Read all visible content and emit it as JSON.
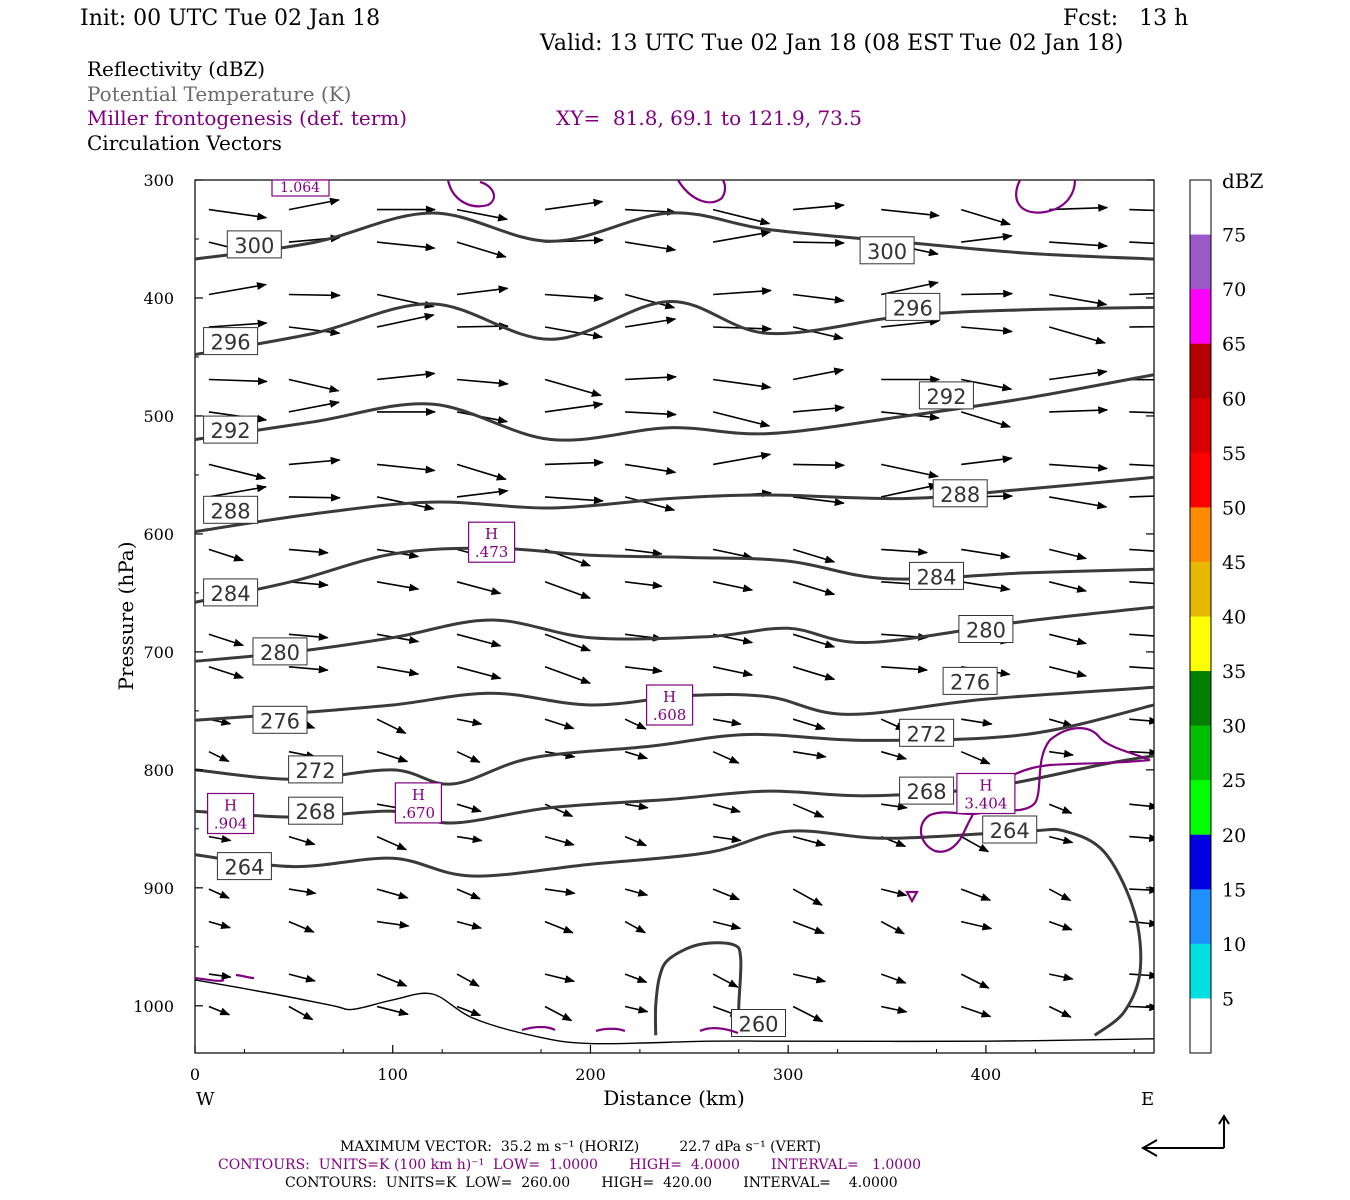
{
  "header": {
    "init": "Init: 00 UTC Tue 02 Jan 18",
    "fcst": "Fcst:   13 h",
    "valid": "Valid: 13 UTC Tue 02 Jan 18 (08 EST Tue 02 Jan 18)"
  },
  "legend_lines": {
    "reflectivity": "Reflectivity (dBZ)",
    "theta": "Potential Temperature (K)",
    "frontogenesis": "Miller frontogenesis (def. term)",
    "xy": "XY=  81.8, 69.1 to 121.9, 73.5",
    "circulation": "Circulation Vectors"
  },
  "footer": {
    "max_vector": "MAXIMUM VECTOR:  35.2 m s⁻¹ (HORIZ)         22.7 dPa s⁻¹ (VERT)",
    "contours_purple": "CONTOURS:  UNITS=K (100 km h)⁻¹  LOW=  1.0000       HIGH=  4.0000       INTERVAL=   1.0000",
    "contours_black": "CONTOURS:  UNITS=K  LOW=  260.00       HIGH=  420.00       INTERVAL=    4.0000"
  },
  "colors": {
    "theta_line": "#3a3a3a",
    "fronto_line": "#800080",
    "vector": "#000000"
  },
  "chart_data": {
    "type": "cross-section",
    "xlabel": "Distance (km)",
    "ylabel": "Pressure (hPa)",
    "xlim": [
      0,
      485
    ],
    "ylim": [
      1040,
      300
    ],
    "x_ticks": [
      0,
      100,
      200,
      300,
      400
    ],
    "y_ticks": [
      300,
      400,
      500,
      600,
      700,
      800,
      900,
      1000
    ],
    "x_end_labels": {
      "left": "W",
      "right": "E"
    },
    "colorbar": {
      "unit": "dBZ",
      "levels": [
        "75",
        "70",
        "65",
        "60",
        "55",
        "50",
        "45",
        "40",
        "35",
        "30",
        "25",
        "20",
        "15",
        "10",
        "5"
      ],
      "colors": [
        "#ffffff",
        "#9b59c8",
        "#ff00ff",
        "#b30000",
        "#d80000",
        "#ff0000",
        "#ff8c00",
        "#e6b800",
        "#ffff00",
        "#008000",
        "#00c000",
        "#00ff00",
        "#0000e0",
        "#1e90ff",
        "#00e0e0",
        "#ffffff"
      ]
    },
    "isentropes": [
      {
        "theta": "300",
        "points": [
          [
            0,
            367
          ],
          [
            60,
            353
          ],
          [
            120,
            328
          ],
          [
            180,
            352
          ],
          [
            240,
            328
          ],
          [
            290,
            342
          ],
          [
            360,
            353
          ],
          [
            420,
            362
          ],
          [
            485,
            367
          ]
        ],
        "labels": [
          [
            30,
            355
          ],
          [
            350,
            360
          ]
        ]
      },
      {
        "theta": "296",
        "points": [
          [
            0,
            448
          ],
          [
            60,
            430
          ],
          [
            120,
            405
          ],
          [
            180,
            435
          ],
          [
            240,
            403
          ],
          [
            290,
            430
          ],
          [
            360,
            415
          ],
          [
            420,
            410
          ],
          [
            485,
            408
          ]
        ],
        "labels": [
          [
            18,
            437
          ],
          [
            363,
            408
          ]
        ]
      },
      {
        "theta": "292",
        "points": [
          [
            0,
            520
          ],
          [
            60,
            505
          ],
          [
            120,
            490
          ],
          [
            180,
            520
          ],
          [
            240,
            510
          ],
          [
            290,
            515
          ],
          [
            360,
            500
          ],
          [
            420,
            485
          ],
          [
            485,
            465
          ]
        ],
        "labels": [
          [
            18,
            512
          ],
          [
            380,
            483
          ]
        ]
      },
      {
        "theta": "288",
        "points": [
          [
            0,
            598
          ],
          [
            60,
            583
          ],
          [
            120,
            573
          ],
          [
            180,
            578
          ],
          [
            240,
            570
          ],
          [
            290,
            567
          ],
          [
            360,
            570
          ],
          [
            420,
            562
          ],
          [
            485,
            552
          ]
        ],
        "labels": [
          [
            18,
            580
          ],
          [
            387,
            566
          ]
        ]
      },
      {
        "theta": "284",
        "points": [
          [
            0,
            658
          ],
          [
            50,
            640
          ],
          [
            100,
            617
          ],
          [
            150,
            612
          ],
          [
            200,
            618
          ],
          [
            250,
            620
          ],
          [
            300,
            623
          ],
          [
            350,
            638
          ],
          [
            420,
            633
          ],
          [
            485,
            630
          ]
        ],
        "labels": [
          [
            18,
            650
          ],
          [
            375,
            636
          ]
        ]
      },
      {
        "theta": "280",
        "points": [
          [
            0,
            708
          ],
          [
            50,
            700
          ],
          [
            100,
            688
          ],
          [
            150,
            673
          ],
          [
            200,
            688
          ],
          [
            260,
            687
          ],
          [
            300,
            680
          ],
          [
            340,
            692
          ],
          [
            420,
            674
          ],
          [
            485,
            662
          ]
        ],
        "labels": [
          [
            43,
            700
          ],
          [
            400,
            681
          ]
        ]
      },
      {
        "theta": "276",
        "points": [
          [
            0,
            758
          ],
          [
            50,
            752
          ],
          [
            100,
            745
          ],
          [
            150,
            735
          ],
          [
            200,
            745
          ],
          [
            250,
            737
          ],
          [
            290,
            738
          ],
          [
            330,
            753
          ],
          [
            400,
            740
          ],
          [
            485,
            730
          ]
        ],
        "labels": [
          [
            43,
            758
          ],
          [
            392,
            725
          ]
        ]
      },
      {
        "theta": "272",
        "points": [
          [
            0,
            800
          ],
          [
            50,
            808
          ],
          [
            100,
            800
          ],
          [
            130,
            812
          ],
          [
            170,
            790
          ],
          [
            230,
            780
          ],
          [
            280,
            770
          ],
          [
            340,
            775
          ],
          [
            420,
            770
          ],
          [
            485,
            745
          ]
        ],
        "labels": [
          [
            61,
            800
          ],
          [
            370,
            769
          ]
        ]
      },
      {
        "theta": "268",
        "points": [
          [
            0,
            835
          ],
          [
            50,
            840
          ],
          [
            100,
            835
          ],
          [
            130,
            845
          ],
          [
            180,
            832
          ],
          [
            240,
            825
          ],
          [
            290,
            818
          ],
          [
            340,
            822
          ],
          [
            400,
            815
          ],
          [
            460,
            795
          ],
          [
            485,
            788
          ]
        ],
        "labels": [
          [
            61,
            835
          ],
          [
            370,
            818
          ]
        ]
      },
      {
        "theta": "264",
        "points": [
          [
            0,
            872
          ],
          [
            50,
            882
          ],
          [
            100,
            875
          ],
          [
            140,
            890
          ],
          [
            200,
            880
          ],
          [
            260,
            870
          ],
          [
            300,
            852
          ],
          [
            350,
            858
          ],
          [
            420,
            852
          ],
          [
            440,
            852
          ],
          [
            460,
            870
          ],
          [
            475,
            920
          ],
          [
            478,
            970
          ],
          [
            470,
            1005
          ],
          [
            455,
            1025
          ]
        ],
        "labels": [
          [
            25,
            882
          ],
          [
            412,
            851
          ]
        ]
      },
      {
        "theta": "260",
        "points": [
          [
            233,
            1025
          ],
          [
            233,
            1000
          ],
          [
            235,
            975
          ],
          [
            240,
            960
          ],
          [
            255,
            948
          ],
          [
            272,
            948
          ],
          [
            276,
            960
          ],
          [
            275,
            1000
          ],
          [
            275,
            1025
          ]
        ],
        "labels": [
          [
            285,
            1015
          ]
        ]
      }
    ],
    "surface_line": [
      [
        0,
        978
      ],
      [
        40,
        990
      ],
      [
        70,
        1000
      ],
      [
        80,
        1003
      ],
      [
        100,
        995
      ],
      [
        120,
        990
      ],
      [
        140,
        1010
      ],
      [
        170,
        1025
      ],
      [
        200,
        1032
      ],
      [
        260,
        1030
      ],
      [
        300,
        1030
      ],
      [
        400,
        1030
      ],
      [
        485,
        1028
      ]
    ],
    "fronto_maxima": [
      {
        "label": "H",
        "value": ".904",
        "at": [
          18,
          837
        ]
      },
      {
        "label": "H",
        "value": ".670",
        "at": [
          113,
          828
        ]
      },
      {
        "label": "H",
        "value": ".473",
        "at": [
          150,
          607
        ]
      },
      {
        "label": "H",
        "value": ".608",
        "at": [
          240,
          745
        ]
      },
      {
        "label": "H",
        "value": "3.404",
        "at": [
          400,
          820
        ]
      }
    ],
    "fronto_clipped_label": "1.064",
    "vector_units": {
      "horiz": "35.2 m s-1",
      "vert": "22.7 dPa s-1"
    }
  }
}
